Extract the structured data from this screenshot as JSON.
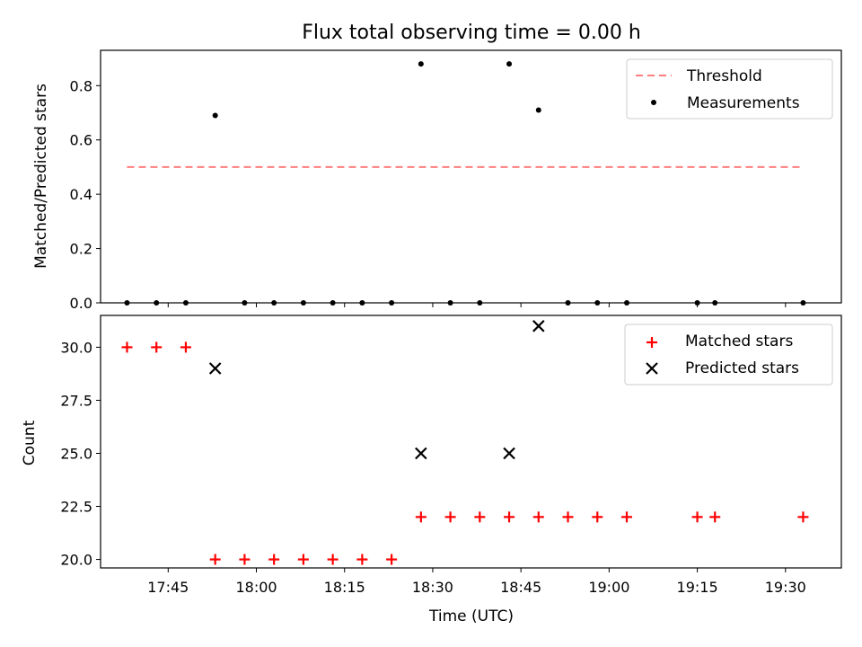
{
  "chart_data": [
    {
      "type": "scatter",
      "title": "Flux total observing time = 0.00 h",
      "xlabel": "",
      "ylabel": "Matched/Predicted stars",
      "x_tick_labels": [
        "17:45",
        "18:00",
        "18:15",
        "18:30",
        "18:45",
        "19:00",
        "19:15",
        "19:30"
      ],
      "ylim": [
        0,
        0.93
      ],
      "y_ticks": [
        "0.0",
        "0.2",
        "0.4",
        "0.6",
        "0.8"
      ],
      "threshold": {
        "name": "Threshold",
        "value": 0.5,
        "x_start": "17:38",
        "x_end": "19:33",
        "color": "#ff7f7f",
        "style": "dashed"
      },
      "series": [
        {
          "name": "Measurements",
          "color": "#000000",
          "marker": "dot",
          "x": [
            "17:38",
            "17:43",
            "17:48",
            "17:53",
            "17:58",
            "18:03",
            "18:08",
            "18:13",
            "18:18",
            "18:23",
            "18:28",
            "18:33",
            "18:38",
            "18:43",
            "18:48",
            "18:53",
            "18:58",
            "19:03",
            "19:15",
            "19:18",
            "19:33"
          ],
          "values": [
            0.0,
            0.0,
            0.0,
            0.69,
            0.0,
            0.0,
            0.0,
            0.0,
            0.0,
            0.0,
            0.88,
            0.0,
            0.0,
            0.88,
            0.71,
            0.0,
            0.0,
            0.0,
            0.0,
            0.0,
            0.0
          ]
        }
      ],
      "legend": {
        "position": "top-right",
        "entries": [
          "Threshold",
          "Measurements"
        ]
      }
    },
    {
      "type": "scatter",
      "title": "",
      "xlabel": "Time (UTC)",
      "ylabel": "Count",
      "x_tick_labels": [
        "17:45",
        "18:00",
        "18:15",
        "18:30",
        "18:45",
        "19:00",
        "19:15",
        "19:30"
      ],
      "ylim": [
        19.6,
        31.5
      ],
      "y_ticks": [
        "20.0",
        "22.5",
        "25.0",
        "27.5",
        "30.0"
      ],
      "series": [
        {
          "name": "Matched stars",
          "color": "#ff0000",
          "marker": "plus",
          "x": [
            "17:38",
            "17:43",
            "17:48",
            "17:53",
            "17:58",
            "18:03",
            "18:08",
            "18:13",
            "18:18",
            "18:23",
            "18:28",
            "18:33",
            "18:38",
            "18:43",
            "18:48",
            "18:53",
            "18:58",
            "19:03",
            "19:15",
            "19:18",
            "19:33"
          ],
          "values": [
            30,
            30,
            30,
            20,
            20,
            20,
            20,
            20,
            20,
            20,
            22,
            22,
            22,
            22,
            22,
            22,
            22,
            22,
            22,
            22,
            22
          ]
        },
        {
          "name": "Predicted stars",
          "color": "#000000",
          "marker": "x",
          "x": [
            "17:53",
            "18:28",
            "18:43",
            "18:48"
          ],
          "values": [
            29,
            25,
            25,
            31
          ]
        }
      ],
      "legend": {
        "position": "top-right",
        "entries": [
          "Matched stars",
          "Predicted stars"
        ]
      }
    }
  ]
}
